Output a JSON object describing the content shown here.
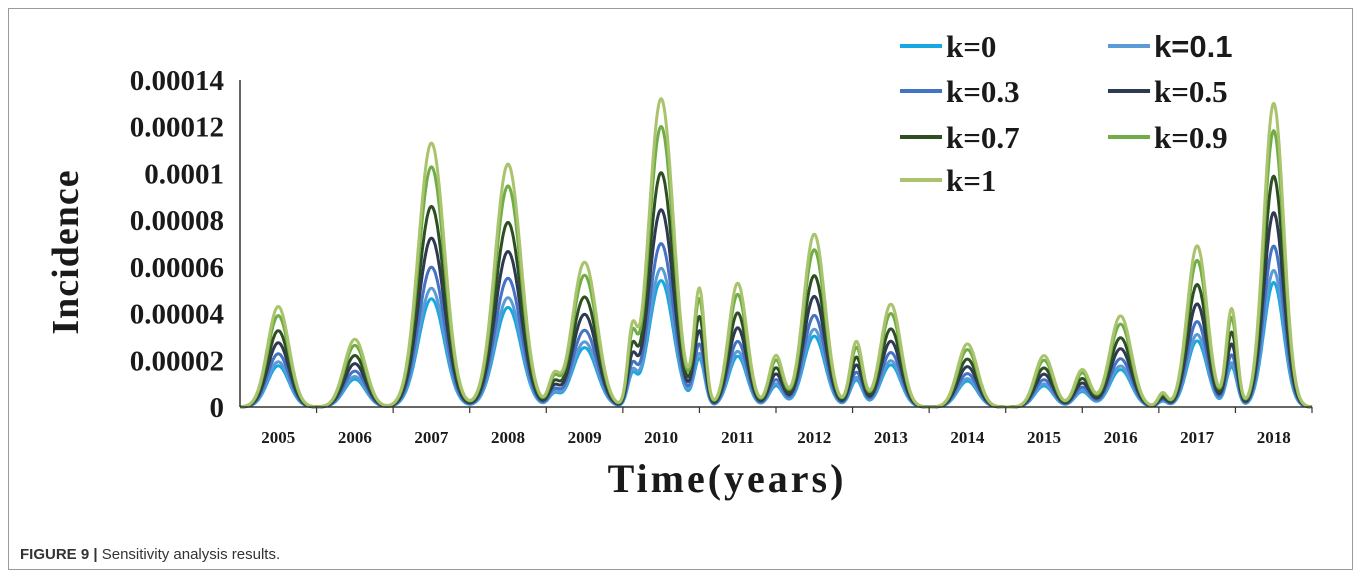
{
  "figure": {
    "label": "FIGURE 9 |",
    "caption": "Sensitivity analysis results."
  },
  "chart_data": {
    "type": "line",
    "title": "",
    "xlabel": "Time(years)",
    "ylabel": "Incidence",
    "categories": [
      "2005",
      "2006",
      "2007",
      "2008",
      "2009",
      "2010",
      "2011",
      "2012",
      "2013",
      "2014",
      "2015",
      "2016",
      "2017",
      "2018"
    ],
    "y_ticks": [
      "0",
      "0.00002",
      "0.00004",
      "0.00006",
      "0.00008",
      "0.0001",
      "0.00012",
      "0.00014"
    ],
    "ylim": [
      0,
      0.00014
    ],
    "grid": false,
    "legend_position": "top-right",
    "peaks": [
      {
        "t": 2005.0,
        "value": 4.3e-05,
        "width": 0.14
      },
      {
        "t": 2006.0,
        "value": 2.9e-05,
        "width": 0.14
      },
      {
        "t": 2007.0,
        "value": 0.000113,
        "width": 0.17
      },
      {
        "t": 2008.0,
        "value": 0.000104,
        "width": 0.17
      },
      {
        "t": 2008.6,
        "value": 1.2e-05,
        "width": 0.07
      },
      {
        "t": 2009.0,
        "value": 6.2e-05,
        "width": 0.16
      },
      {
        "t": 2009.62,
        "value": 2.8e-05,
        "width": 0.06
      },
      {
        "t": 2010.0,
        "value": 0.000132,
        "width": 0.16
      },
      {
        "t": 2010.5,
        "value": 5e-05,
        "width": 0.07
      },
      {
        "t": 2011.0,
        "value": 5.3e-05,
        "width": 0.12
      },
      {
        "t": 2011.5,
        "value": 2.2e-05,
        "width": 0.09
      },
      {
        "t": 2012.0,
        "value": 7.4e-05,
        "width": 0.14
      },
      {
        "t": 2012.55,
        "value": 2.8e-05,
        "width": 0.08
      },
      {
        "t": 2013.0,
        "value": 4.4e-05,
        "width": 0.13
      },
      {
        "t": 2014.0,
        "value": 2.7e-05,
        "width": 0.13
      },
      {
        "t": 2015.0,
        "value": 2.2e-05,
        "width": 0.12
      },
      {
        "t": 2015.5,
        "value": 1.6e-05,
        "width": 0.1
      },
      {
        "t": 2016.0,
        "value": 3.9e-05,
        "width": 0.14
      },
      {
        "t": 2016.55,
        "value": 6e-06,
        "width": 0.06
      },
      {
        "t": 2017.0,
        "value": 6.9e-05,
        "width": 0.13
      },
      {
        "t": 2017.45,
        "value": 4.2e-05,
        "width": 0.07
      },
      {
        "t": 2018.0,
        "value": 0.00013,
        "width": 0.13
      }
    ],
    "series": [
      {
        "name": "k=0",
        "scale": 0.41,
        "color": "#18a8e0"
      },
      {
        "name": "k=0.1",
        "scale": 0.45,
        "color": "#5b9bd5"
      },
      {
        "name": "k=0.3",
        "scale": 0.53,
        "color": "#4472c4"
      },
      {
        "name": "k=0.5",
        "scale": 0.64,
        "color": "#2e3a52"
      },
      {
        "name": "k=0.7",
        "scale": 0.76,
        "color": "#2f4f22"
      },
      {
        "name": "k=0.9",
        "scale": 0.91,
        "color": "#70ad47"
      },
      {
        "name": "k=1",
        "scale": 1.0,
        "color": "#a9c46c"
      }
    ]
  }
}
